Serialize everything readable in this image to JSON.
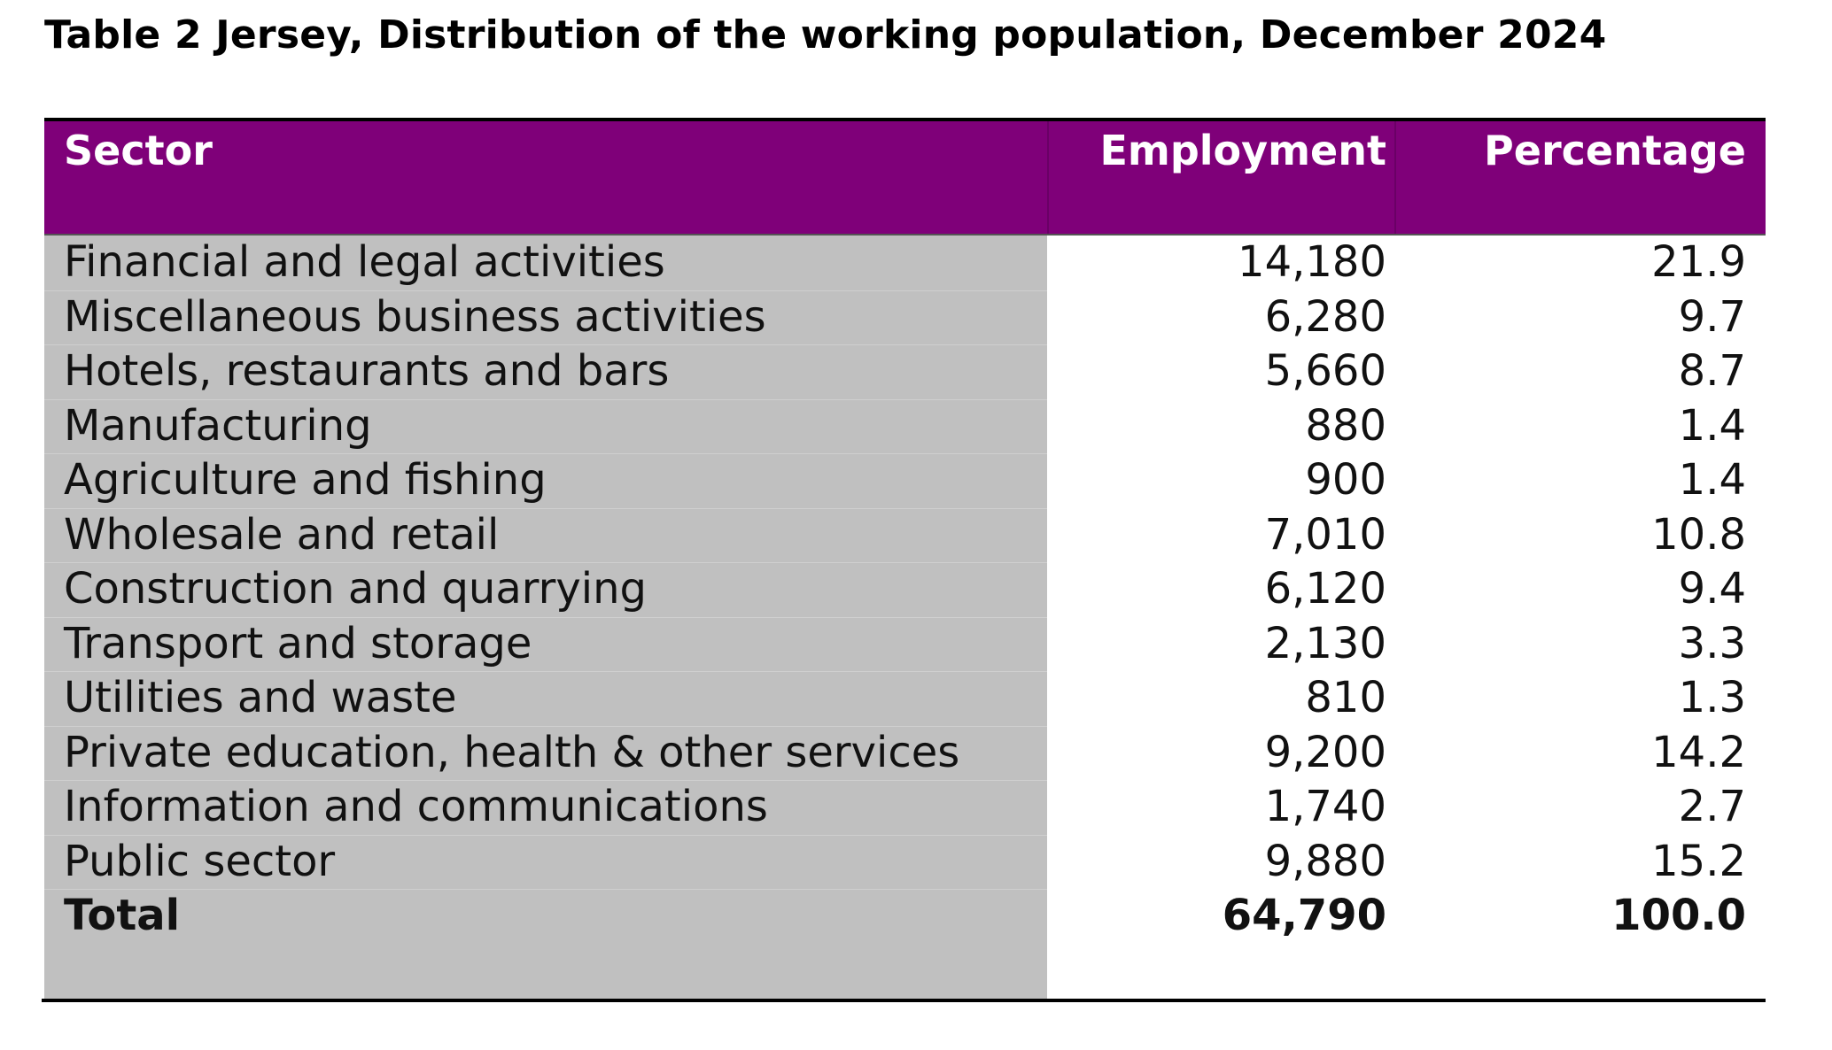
{
  "title": "Table 2  Jersey, Distribution of the working population, December 2024",
  "colors": {
    "header_bg": "#7f0079",
    "header_text": "#ffffff",
    "sector_column_bg": "#c0c0c0"
  },
  "table": {
    "headers": {
      "sector": "Sector",
      "employment": "Employment",
      "percentage": "Percentage"
    },
    "rows": [
      {
        "sector": "Financial and legal activities",
        "employment": "14,180",
        "percentage": "21.9"
      },
      {
        "sector": "Miscellaneous business activities",
        "employment": "6,280",
        "percentage": "9.7"
      },
      {
        "sector": "Hotels, restaurants and bars",
        "employment": "5,660",
        "percentage": "8.7"
      },
      {
        "sector": "Manufacturing",
        "employment": "880",
        "percentage": "1.4"
      },
      {
        "sector": "Agriculture and fishing",
        "employment": "900",
        "percentage": "1.4"
      },
      {
        "sector": "Wholesale and retail",
        "employment": "7,010",
        "percentage": "10.8"
      },
      {
        "sector": "Construction and quarrying",
        "employment": "6,120",
        "percentage": "9.4"
      },
      {
        "sector": "Transport and storage",
        "employment": "2,130",
        "percentage": "3.3"
      },
      {
        "sector": "Utilities and waste",
        "employment": "810",
        "percentage": "1.3"
      },
      {
        "sector": "Private education, health & other services",
        "employment": "9,200",
        "percentage": "14.2"
      },
      {
        "sector": "Information and communications",
        "employment": "1,740",
        "percentage": "2.7"
      },
      {
        "sector": "Public sector",
        "employment": "9,880",
        "percentage": "15.2"
      }
    ],
    "total": {
      "sector": "Total",
      "employment": "64,790",
      "percentage": "100.0"
    }
  }
}
